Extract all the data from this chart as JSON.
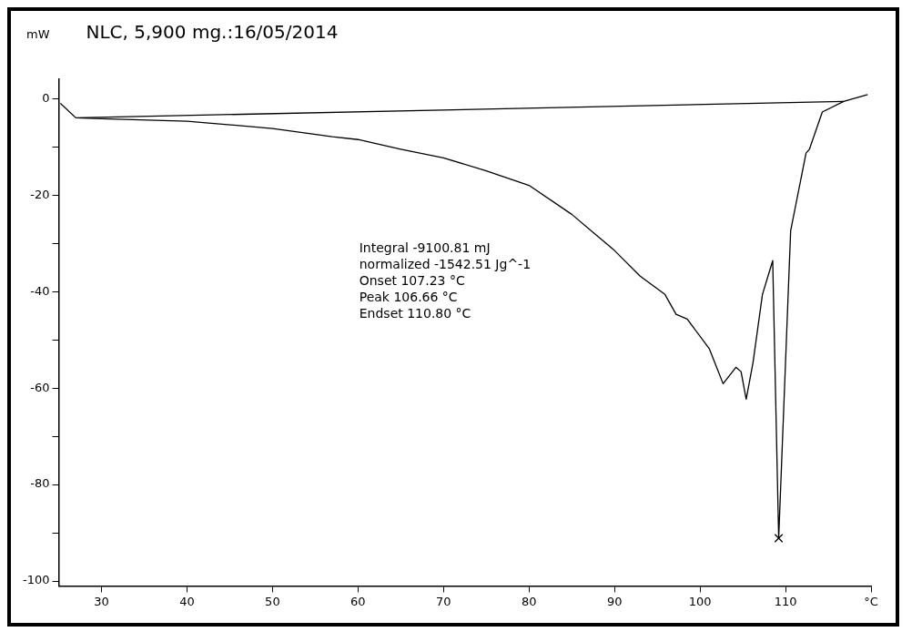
{
  "chart_data": {
    "type": "line",
    "title": "NLC, 5,900 mg.:16/05/2014",
    "ylabel": "mW",
    "marker": "none",
    "grid": false,
    "legend": false,
    "xlim": [
      25,
      120
    ],
    "xticks": [
      30,
      40,
      50,
      60,
      70,
      80,
      90,
      100,
      110,
      {
        "value": 120,
        "label": "°C"
      }
    ],
    "ylim": [
      -101,
      4
    ],
    "yticks": [
      0,
      {
        "value": -10,
        "label": null
      },
      -20,
      {
        "value": -30,
        "label": null
      },
      -40,
      {
        "value": -50,
        "label": null
      },
      -60,
      {
        "value": -70,
        "label": null
      },
      -80,
      {
        "value": -90,
        "label": null
      },
      -100
    ],
    "series": [
      {
        "color": "#000000",
        "x": [
          25.2,
          27,
          30,
          40,
          50,
          57,
          60,
          65,
          70,
          75,
          80,
          85,
          90,
          93,
          95.9,
          97.2,
          98.5,
          101.1,
          102.7,
          104.2,
          104.8,
          105.4,
          106.2,
          107.3,
          108.5,
          109.2,
          110.6,
          112.4,
          112.8,
          114.3,
          116.8,
          119.6
        ],
        "values": [
          -1,
          -4,
          -4.2,
          -4.7,
          -6.2,
          -7.9,
          -8.5,
          -10.5,
          -12.3,
          -15,
          -18,
          -24,
          -31.5,
          -36.8,
          -40.6,
          -44.7,
          -45.7,
          -51.9,
          -59.1,
          -55.7,
          -56.6,
          -62.3,
          -54.7,
          -40.6,
          -33.6,
          -91.1,
          -27.4,
          -11.3,
          -10.5,
          -2.8,
          -0.6,
          0.8
        ]
      },
      {
        "color": "#000000",
        "x": [
          27,
          116.8
        ],
        "values": [
          -4,
          -0.6
        ]
      },
      {
        "type": "scatter",
        "marker": "cross",
        "color": "#000000",
        "x": [
          109.2
        ],
        "values": [
          -91.1
        ]
      }
    ],
    "annotations": [
      "Integral -9100.81 mJ",
      "normalized -1542.51 Jg^-1",
      "Onset 107.23 °C",
      "Peak 106.66 °C",
      "Endset 110.80 °C"
    ]
  }
}
